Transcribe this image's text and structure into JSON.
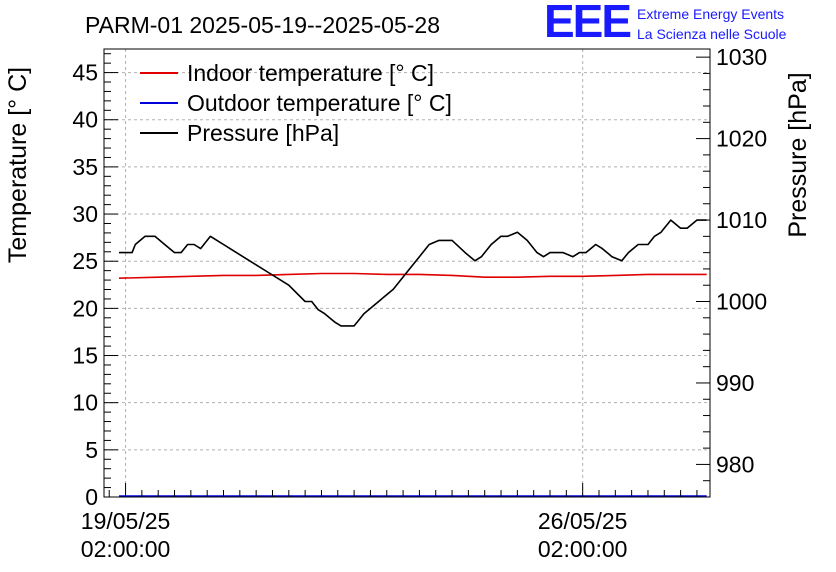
{
  "brand": {
    "logo": "EEE",
    "line1": "Extreme Energy Events",
    "line2": "La Scienza nelle Scuole"
  },
  "colors": {
    "indoor": "#e00000",
    "outdoor": "#0000dd",
    "pressure": "#000000",
    "grid": "#b0b0b0"
  },
  "chart_data": {
    "type": "line",
    "title": "PARM-01 2025-05-19--2025-05-28",
    "ylabel": "Temperature [° C]",
    "y2label": "Pressure [hPa]",
    "xlabel": "",
    "ylim": [
      0,
      47.5
    ],
    "y2lim": [
      976,
      1031
    ],
    "yticks": [
      0,
      5,
      10,
      15,
      20,
      25,
      30,
      35,
      40,
      45
    ],
    "y2ticks": [
      980,
      990,
      1000,
      1010,
      1020,
      1030
    ],
    "xlim": [
      -0.33,
      8.95
    ],
    "xticks": [
      {
        "x": 0,
        "line1": "19/05/25",
        "line2": "02:00:00"
      },
      {
        "x": 7,
        "line1": "26/05/25",
        "line2": "02:00:00"
      }
    ],
    "x_unit": "days from 19/05/25 02:00:00",
    "grid": true,
    "legend_position": "top-left",
    "series": [
      {
        "name": "Indoor temperature [° C]",
        "axis": "left",
        "color": "#e00000",
        "x": [
          -0.1,
          0.5,
          1.0,
          1.5,
          2.0,
          2.5,
          3.0,
          3.5,
          4.0,
          4.5,
          5.0,
          5.5,
          6.0,
          6.5,
          7.0,
          7.5,
          8.0,
          8.9
        ],
        "y": [
          23.2,
          23.3,
          23.4,
          23.5,
          23.5,
          23.6,
          23.7,
          23.7,
          23.6,
          23.6,
          23.5,
          23.3,
          23.3,
          23.4,
          23.4,
          23.5,
          23.6,
          23.6
        ]
      },
      {
        "name": "Outdoor temperature [° C]",
        "axis": "left",
        "color": "#0000dd",
        "x": [
          -0.1,
          8.9
        ],
        "y": [
          0.1,
          0.1
        ]
      },
      {
        "name": "Pressure [hPa]",
        "axis": "right",
        "color": "#000000",
        "x": [
          -0.1,
          0.1,
          0.15,
          0.3,
          0.45,
          0.6,
          0.75,
          0.85,
          0.95,
          1.05,
          1.15,
          1.3,
          1.4,
          1.5,
          1.6,
          1.9,
          2.2,
          2.5,
          2.75,
          2.85,
          2.95,
          3.05,
          3.2,
          3.3,
          3.4,
          3.5,
          3.55,
          3.65,
          3.8,
          3.95,
          4.1,
          4.2,
          4.35,
          4.5,
          4.65,
          4.8,
          5.0,
          5.2,
          5.35,
          5.45,
          5.6,
          5.75,
          5.85,
          6.0,
          6.15,
          6.3,
          6.4,
          6.5,
          6.7,
          6.85,
          6.95,
          7.05,
          7.2,
          7.3,
          7.45,
          7.6,
          7.7,
          7.85,
          8.0,
          8.1,
          8.2,
          8.35,
          8.5,
          8.6,
          8.75,
          8.9
        ],
        "y": [
          1006.0,
          1006.0,
          1007.0,
          1008.0,
          1008.0,
          1007.0,
          1006.0,
          1006.0,
          1007.0,
          1007.0,
          1006.5,
          1008.0,
          1007.5,
          1007.0,
          1006.5,
          1005.0,
          1003.5,
          1002.0,
          1000.0,
          1000.0,
          999.0,
          998.5,
          997.5,
          997.0,
          997.0,
          997.0,
          997.5,
          998.5,
          999.5,
          1000.5,
          1001.5,
          1002.5,
          1004.0,
          1005.5,
          1007.0,
          1007.5,
          1007.5,
          1006.0,
          1005.0,
          1005.5,
          1007.0,
          1008.0,
          1008.0,
          1008.5,
          1007.5,
          1006.0,
          1005.5,
          1006.0,
          1006.0,
          1005.5,
          1006.0,
          1006.0,
          1007.0,
          1006.5,
          1005.5,
          1005.0,
          1006.0,
          1007.0,
          1007.0,
          1008.0,
          1008.5,
          1010.0,
          1009.0,
          1009.0,
          1010.0,
          1010.0
        ]
      }
    ]
  }
}
